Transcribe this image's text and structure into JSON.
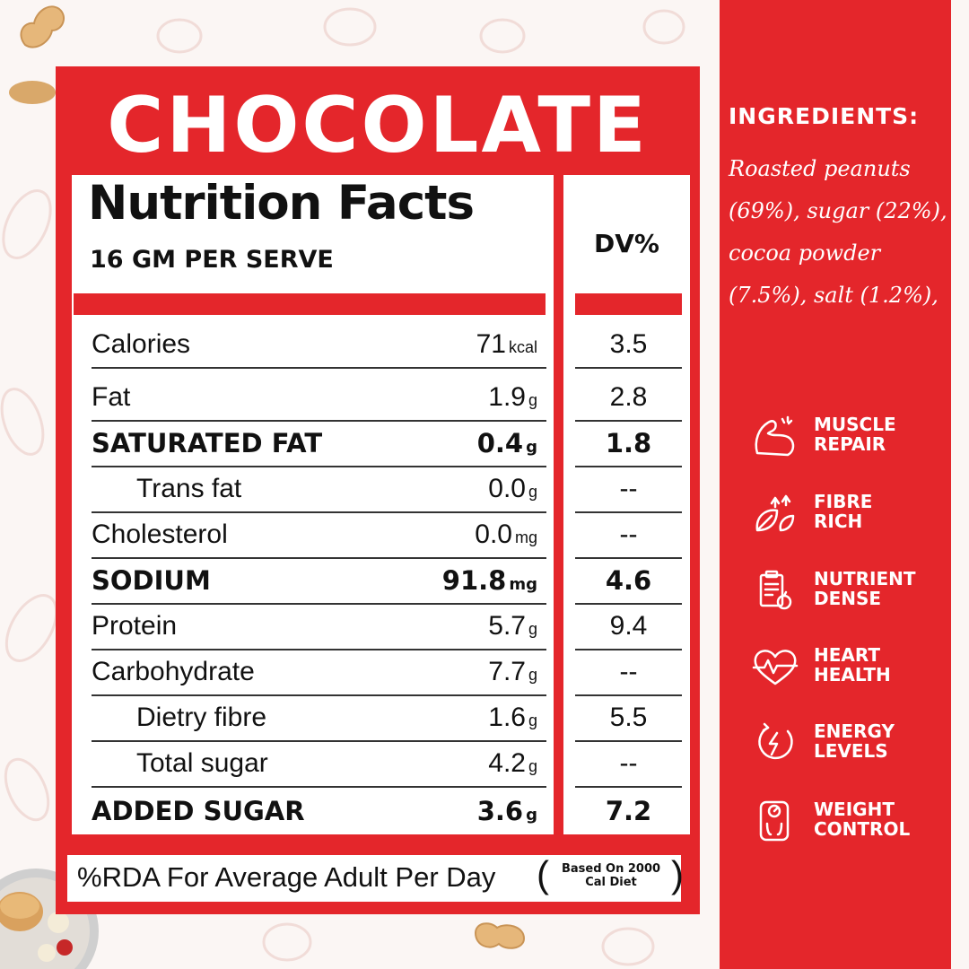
{
  "title": "CHOCOLATE",
  "nutrition": {
    "heading": "Nutrition Facts",
    "serving": "16 GM PER SERVE",
    "dv_header": "DV%",
    "rows": [
      {
        "name": "Calories",
        "value": "71",
        "unit": "kcal",
        "dv": "3.5"
      },
      {
        "name": "Fat",
        "value": "1.9",
        "unit": "g",
        "dv": "2.8"
      },
      {
        "name": "SATURATED FAT",
        "value": "0.4",
        "unit": "g",
        "dv": "1.8"
      },
      {
        "name": "Trans fat",
        "value": "0.0",
        "unit": "g",
        "dv": "--"
      },
      {
        "name": "Cholesterol",
        "value": "0.0",
        "unit": "mg",
        "dv": "--"
      },
      {
        "name": "SODIUM",
        "value": "91.8",
        "unit": "mg",
        "dv": "4.6"
      },
      {
        "name": "Protein",
        "value": "5.7",
        "unit": "g",
        "dv": "9.4"
      },
      {
        "name": "Carbohydrate",
        "value": "7.7",
        "unit": "g",
        "dv": "--"
      },
      {
        "name": "Dietry fibre",
        "value": "1.6",
        "unit": "g",
        "dv": "5.5"
      },
      {
        "name": "Total sugar",
        "value": "4.2",
        "unit": "g",
        "dv": "--"
      },
      {
        "name": "ADDED SUGAR",
        "value": "3.6",
        "unit": "g",
        "dv": "7.2"
      }
    ],
    "footnote": "%RDA For Average Adult Per Day",
    "footnote_note_line1": "Based On 2000",
    "footnote_note_line2": "Cal Diet"
  },
  "ingredients": {
    "title": "INGREDIENTS:",
    "lines": [
      "Roasted peanuts",
      "(69%), sugar (22%),",
      "cocoa powder",
      "(7.5%), salt (1.2%),"
    ]
  },
  "benefits": [
    {
      "icon": "muscle-icon",
      "line1": "MUSCLE",
      "line2": "REPAIR"
    },
    {
      "icon": "fibre-leaf-icon",
      "line1": "FIBRE",
      "line2": "RICH"
    },
    {
      "icon": "clipboard-apple-icon",
      "line1": "NUTRIENT",
      "line2": "DENSE"
    },
    {
      "icon": "heart-pulse-icon",
      "line1": "HEART",
      "line2": "HEALTH"
    },
    {
      "icon": "energy-bolt-icon",
      "line1": "ENERGY",
      "line2": "LEVELS"
    },
    {
      "icon": "scale-icon",
      "line1": "WEIGHT",
      "line2": "CONTROL"
    }
  ],
  "colors": {
    "brand_red": "#e4262b",
    "text": "#111111",
    "background": "#fbf6f4"
  }
}
